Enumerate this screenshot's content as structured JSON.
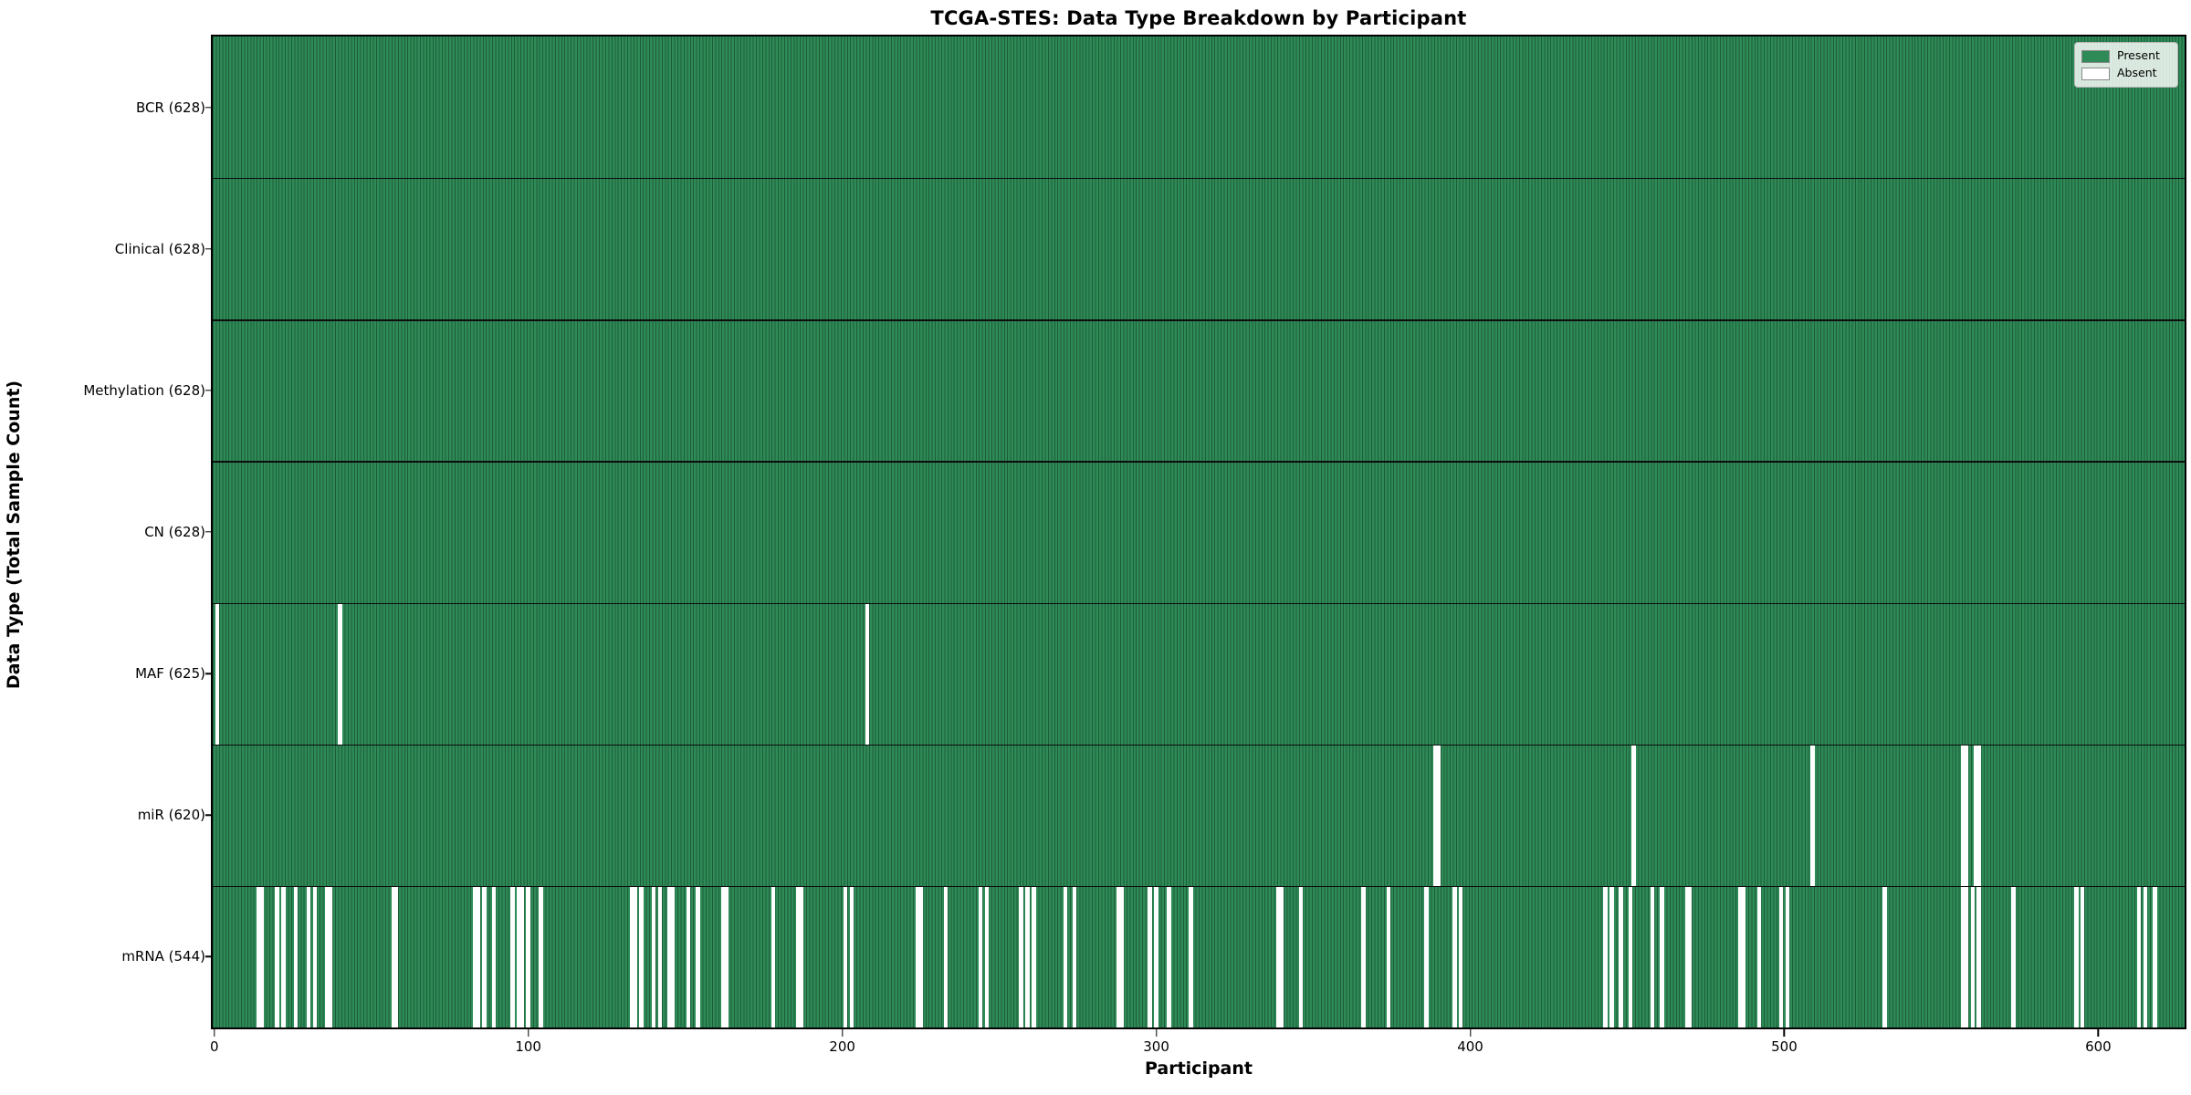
{
  "title": "TCGA-STES: Data Type Breakdown by Participant",
  "colors": {
    "present": "#2e8b57",
    "present_edge": "#1d5c39",
    "absent": "#ffffff",
    "axis": "#000000"
  },
  "chart_data": {
    "type": "heatmap",
    "title": "TCGA-STES: Data Type Breakdown by Participant",
    "xlabel": "Participant",
    "ylabel": "Data Type (Total Sample Count)",
    "x_ticks": [
      0,
      100,
      200,
      300,
      400,
      500,
      600
    ],
    "x_range": [
      0,
      628
    ],
    "n_participants": 628,
    "legend_position": "upper right",
    "legend": [
      {
        "label": "Present",
        "color": "#2e8b57"
      },
      {
        "label": "Absent",
        "color": "#ffffff"
      }
    ],
    "rows": [
      {
        "label": "BCR",
        "count": 628,
        "tick_label": "BCR (628)",
        "absent_participants": []
      },
      {
        "label": "Clinical",
        "count": 628,
        "tick_label": "Clinical (628)",
        "absent_participants": []
      },
      {
        "label": "Methylation",
        "count": 628,
        "tick_label": "Methylation (628)",
        "absent_participants": []
      },
      {
        "label": "CN",
        "count": 628,
        "tick_label": "CN (628)",
        "absent_participants": []
      },
      {
        "label": "MAF",
        "count": 625,
        "tick_label": "MAF (625)",
        "absent_participants": [
          1,
          40,
          208
        ]
      },
      {
        "label": "miR",
        "count": 620,
        "tick_label": "miR (620)",
        "absent_participants": [
          389,
          390,
          452,
          509,
          557,
          558,
          561,
          562
        ]
      },
      {
        "label": "mRNA",
        "count": 544,
        "tick_label": "mRNA (544)",
        "absent_participants": [
          14,
          15,
          20,
          22,
          26,
          30,
          32,
          36,
          37,
          57,
          58,
          83,
          84,
          86,
          89,
          95,
          97,
          98,
          100,
          104,
          133,
          134,
          136,
          140,
          142,
          145,
          146,
          151,
          154,
          162,
          163,
          178,
          186,
          187,
          201,
          203,
          224,
          225,
          233,
          244,
          246,
          257,
          259,
          261,
          271,
          274,
          288,
          289,
          298,
          300,
          304,
          311,
          339,
          340,
          346,
          366,
          374,
          386,
          395,
          397,
          443,
          445,
          448,
          451,
          458,
          461,
          469,
          470,
          486,
          487,
          492,
          499,
          501,
          532,
          557,
          558,
          560,
          562,
          573,
          593,
          595,
          613,
          615,
          618
        ]
      }
    ]
  }
}
